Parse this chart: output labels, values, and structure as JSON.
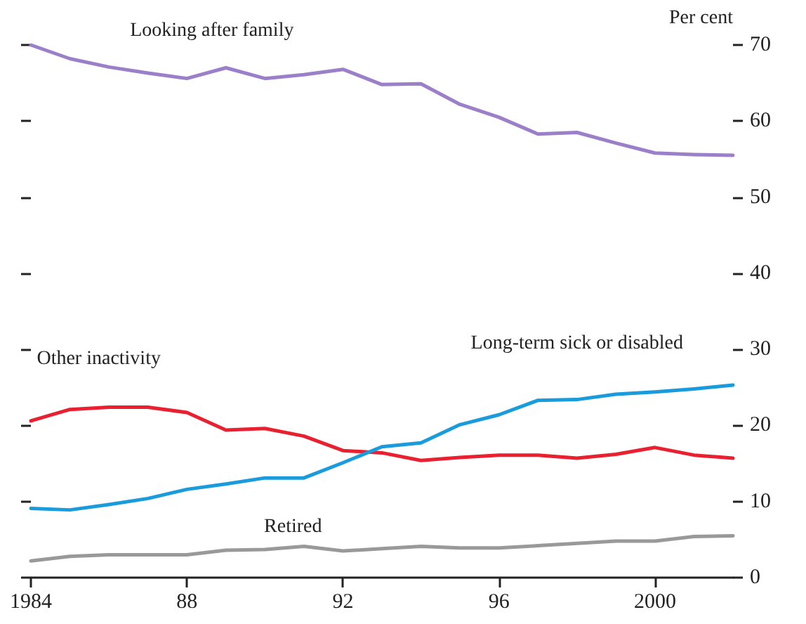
{
  "chart_data": {
    "type": "line",
    "ylabel": "Per cent",
    "x": [
      1984,
      1985,
      1986,
      1987,
      1988,
      1989,
      1990,
      1991,
      1992,
      1993,
      1994,
      1995,
      1996,
      1997,
      1998,
      1999,
      2000,
      2001,
      2002
    ],
    "xlim": [
      1984,
      2002
    ],
    "xticks": [
      1984,
      {
        "value": 1988,
        "label": "88"
      },
      {
        "value": 1992,
        "label": "92"
      },
      {
        "value": 1996,
        "label": "96"
      },
      2000
    ],
    "ylim": [
      0,
      70
    ],
    "yticks": [
      0,
      10,
      20,
      30,
      40,
      50,
      60,
      70
    ],
    "series": [
      {
        "name": "Looking after family",
        "color": "#9b7fc9",
        "values": [
          70,
          68.2,
          67.1,
          66.3,
          65.6,
          67,
          65.6,
          66.1,
          66.8,
          64.8,
          64.9,
          62.2,
          60.5,
          58.3,
          58.5,
          57.1,
          55.8,
          55.6,
          55.5
        ]
      },
      {
        "name": "Other inactivity",
        "color": "#e8202f",
        "values": [
          20.6,
          22.1,
          22.4,
          22.4,
          21.7,
          19.4,
          19.6,
          18.6,
          16.7,
          16.4,
          15.4,
          15.8,
          16.1,
          16.1,
          15.7,
          16.2,
          17.1,
          16.1,
          15.7
        ]
      },
      {
        "name": "Long-term sick or disabled",
        "color": "#1a9bdb",
        "values": [
          9.1,
          8.9,
          9.6,
          10.4,
          11.6,
          12.3,
          13.1,
          13.1,
          15.1,
          17.2,
          17.7,
          20.1,
          21.4,
          23.3,
          23.4,
          24.1,
          24.4,
          24.8,
          25.3
        ]
      },
      {
        "name": "Retired",
        "color": "#999999",
        "values": [
          2.2,
          2.8,
          3.0,
          3.0,
          3.0,
          3.6,
          3.7,
          4.1,
          3.5,
          3.8,
          4.1,
          3.9,
          3.9,
          4.2,
          4.5,
          4.8,
          4.8,
          5.4,
          5.5
        ]
      }
    ],
    "grid": false,
    "legend": false,
    "marker": "none",
    "line_style": "solid"
  }
}
